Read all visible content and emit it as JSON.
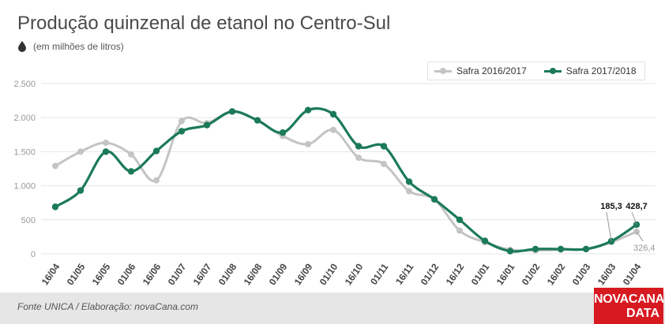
{
  "header": {
    "title": "Produção quinzenal de etanol no Centro-Sul",
    "subtitle": "(em milhões de litros)"
  },
  "footer": {
    "source": "Fonte UNICA / Elaboração: novaCana.com",
    "logo_line1": "NOVACANA",
    "logo_line2": "DATA"
  },
  "colors": {
    "series_2016": "#c4c4c4",
    "series_2017": "#1b7a57",
    "grid": "#e6e6e6",
    "axis_text": "#999999",
    "logo_bg": "#d71920"
  },
  "chart_data": {
    "type": "line",
    "title": "Produção quinzenal de etanol no Centro-Sul",
    "subtitle": "(em milhões de litros)",
    "xlabel": "",
    "ylabel": "",
    "ylim": [
      0,
      2500
    ],
    "yticks": [
      0,
      500,
      1000,
      1500,
      2000,
      2500
    ],
    "ytick_labels": [
      "0",
      "500",
      "1.000",
      "1.500",
      "2.000",
      "2.500"
    ],
    "grid": true,
    "legend_position": "top-right",
    "categories": [
      "16/04",
      "01/05",
      "16/05",
      "01/06",
      "16/06",
      "01/07",
      "16/07",
      "01/08",
      "16/08",
      "01/09",
      "16/09",
      "01/10",
      "16/10",
      "01/11",
      "16/11",
      "01/12",
      "16/12",
      "01/01",
      "16/01",
      "01/02",
      "16/02",
      "01/03",
      "16/03",
      "01/04"
    ],
    "series": [
      {
        "name": "Safra 2016/2017",
        "color": "#c4c4c4",
        "values": [
          1290,
          1500,
          1630,
          1460,
          1080,
          1950,
          1920,
          2090,
          1960,
          1730,
          1610,
          1820,
          1410,
          1320,
          920,
          800,
          340,
          170,
          60,
          50,
          60,
          70,
          170,
          326.4
        ],
        "end_label": "326,4"
      },
      {
        "name": "Safra 2017/2018",
        "color": "#1b7a57",
        "values": [
          690,
          930,
          1500,
          1210,
          1510,
          1800,
          1890,
          2090,
          1960,
          1780,
          2110,
          2050,
          1580,
          1580,
          1060,
          800,
          500,
          190,
          40,
          70,
          70,
          70,
          185.3,
          428.7
        ],
        "point_labels": [
          {
            "index": 22,
            "label": "185,3"
          },
          {
            "index": 23,
            "label": "428,7"
          }
        ]
      }
    ]
  }
}
